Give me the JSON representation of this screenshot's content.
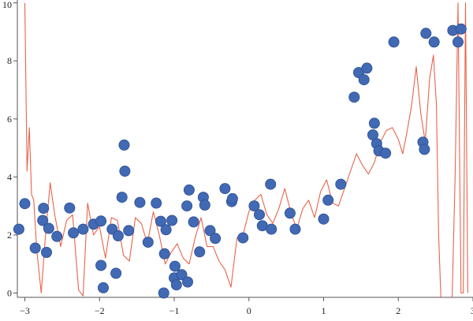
{
  "chart_data": {
    "type": "scatter",
    "title": "",
    "xlabel": "",
    "ylabel": "",
    "xlim": [
      -3.1,
      3.0
    ],
    "ylim": [
      -0.15,
      10.1
    ],
    "grid": false,
    "legend": "none",
    "x_ticks": [
      {
        "value": -3,
        "label": "−3"
      },
      {
        "value": -2,
        "label": "−2"
      },
      {
        "value": -1,
        "label": "−1"
      },
      {
        "value": 0,
        "label": "0"
      },
      {
        "value": 1,
        "label": "1"
      },
      {
        "value": 2,
        "label": "2"
      },
      {
        "value": 3,
        "label": "3"
      }
    ],
    "y_ticks": [
      {
        "value": 0,
        "label": "0"
      },
      {
        "value": 2,
        "label": "2"
      },
      {
        "value": 4,
        "label": "4"
      },
      {
        "value": 6,
        "label": "6"
      },
      {
        "value": 8,
        "label": "8"
      },
      {
        "value": 10,
        "label": "10"
      }
    ],
    "colors": {
      "points": "#4169b4",
      "point_edge": "#2f4f8f",
      "curve": "#e8644a",
      "axes": "#555555"
    },
    "series": [
      {
        "kind": "points",
        "x": [
          -3.08,
          -3.0,
          -2.86,
          -2.76,
          -2.75,
          -2.71,
          -2.68,
          -2.57,
          -2.4,
          -2.35,
          -2.22,
          -2.08,
          -1.98,
          -1.98,
          -1.95,
          -1.83,
          -1.78,
          -1.75,
          -1.7,
          -1.67,
          -1.66,
          -1.61,
          -1.46,
          -1.35,
          -1.24,
          -1.18,
          -1.14,
          -1.13,
          -1.11,
          -1.03,
          -1.0,
          -0.99,
          -0.97,
          -0.9,
          -0.83,
          -0.82,
          -0.8,
          -0.74,
          -0.66,
          -0.61,
          -0.59,
          -0.52,
          -0.45,
          -0.32,
          -0.23,
          -0.22,
          -0.08,
          0.07,
          0.14,
          0.18,
          0.29,
          0.3,
          0.55,
          0.62,
          1.0,
          1.06,
          1.23,
          1.41,
          1.47,
          1.54,
          1.58,
          1.66,
          1.68,
          1.71,
          1.74,
          1.83,
          1.94,
          2.33,
          2.35,
          2.37,
          2.48,
          2.73,
          2.8,
          2.84
        ],
        "y": [
          2.2,
          3.08,
          1.55,
          2.5,
          2.92,
          1.4,
          2.23,
          1.95,
          2.93,
          2.07,
          2.2,
          2.37,
          2.48,
          0.95,
          0.18,
          2.2,
          0.68,
          1.97,
          3.3,
          5.1,
          4.2,
          2.15,
          3.12,
          1.75,
          3.1,
          2.47,
          0.0,
          1.35,
          2.18,
          2.5,
          0.52,
          0.92,
          0.28,
          0.63,
          3.0,
          0.38,
          3.55,
          2.45,
          1.42,
          3.3,
          3.03,
          2.15,
          1.88,
          3.6,
          3.15,
          3.25,
          1.9,
          3.0,
          2.7,
          2.32,
          3.75,
          2.2,
          2.75,
          2.2,
          2.55,
          3.2,
          3.75,
          6.75,
          7.6,
          7.35,
          7.75,
          5.45,
          5.85,
          5.15,
          4.9,
          4.82,
          8.65,
          5.2,
          4.95,
          8.95,
          8.65,
          9.05,
          8.65,
          9.1
        ]
      },
      {
        "kind": "curve",
        "x": [
          -3.0,
          -2.97,
          -2.94,
          -2.91,
          -2.88,
          -2.84,
          -2.78,
          -2.72,
          -2.66,
          -2.6,
          -2.52,
          -2.44,
          -2.36,
          -2.28,
          -2.22,
          -2.16,
          -2.08,
          -2.0,
          -1.92,
          -1.84,
          -1.76,
          -1.68,
          -1.6,
          -1.52,
          -1.44,
          -1.36,
          -1.28,
          -1.2,
          -1.12,
          -1.04,
          -0.96,
          -0.88,
          -0.8,
          -0.72,
          -0.64,
          -0.56,
          -0.48,
          -0.4,
          -0.32,
          -0.24,
          -0.16,
          -0.08,
          0.0,
          0.08,
          0.16,
          0.24,
          0.32,
          0.4,
          0.48,
          0.56,
          0.64,
          0.72,
          0.8,
          0.88,
          0.96,
          1.04,
          1.12,
          1.2,
          1.28,
          1.36,
          1.44,
          1.52,
          1.6,
          1.68,
          1.76,
          1.84,
          1.92,
          2.0,
          2.06,
          2.12,
          2.18,
          2.24,
          2.3,
          2.36,
          2.42,
          2.47,
          2.51,
          2.54,
          2.57,
          2.6,
          2.64,
          2.68,
          2.72,
          2.76,
          2.8,
          2.84,
          2.87,
          2.9,
          2.93
        ],
        "y": [
          10.0,
          4.2,
          5.7,
          3.4,
          3.2,
          1.5,
          0.0,
          2.1,
          3.8,
          2.7,
          1.6,
          2.5,
          2.7,
          0.1,
          -0.1,
          3.1,
          2.0,
          2.3,
          1.2,
          2.6,
          2.5,
          1.3,
          1.1,
          2.6,
          2.4,
          1.7,
          2.8,
          2.0,
          1.0,
          1.4,
          1.7,
          1.2,
          1.0,
          1.9,
          2.6,
          1.6,
          1.6,
          1.1,
          0.8,
          0.2,
          1.9,
          2.0,
          2.8,
          3.2,
          3.4,
          2.7,
          2.4,
          2.9,
          3.6,
          2.8,
          2.2,
          2.9,
          3.2,
          2.6,
          3.5,
          3.9,
          3.1,
          3.0,
          3.6,
          4.2,
          4.8,
          4.4,
          4.1,
          4.5,
          5.2,
          5.6,
          5.7,
          5.3,
          4.8,
          5.6,
          6.5,
          7.8,
          6.2,
          5.2,
          7.4,
          8.2,
          6.5,
          2.0,
          -0.2,
          -0.2,
          -0.2,
          -0.2,
          -0.2,
          4.0,
          10.0,
          0.0,
          0.0,
          10.0,
          0.0
        ]
      }
    ]
  }
}
